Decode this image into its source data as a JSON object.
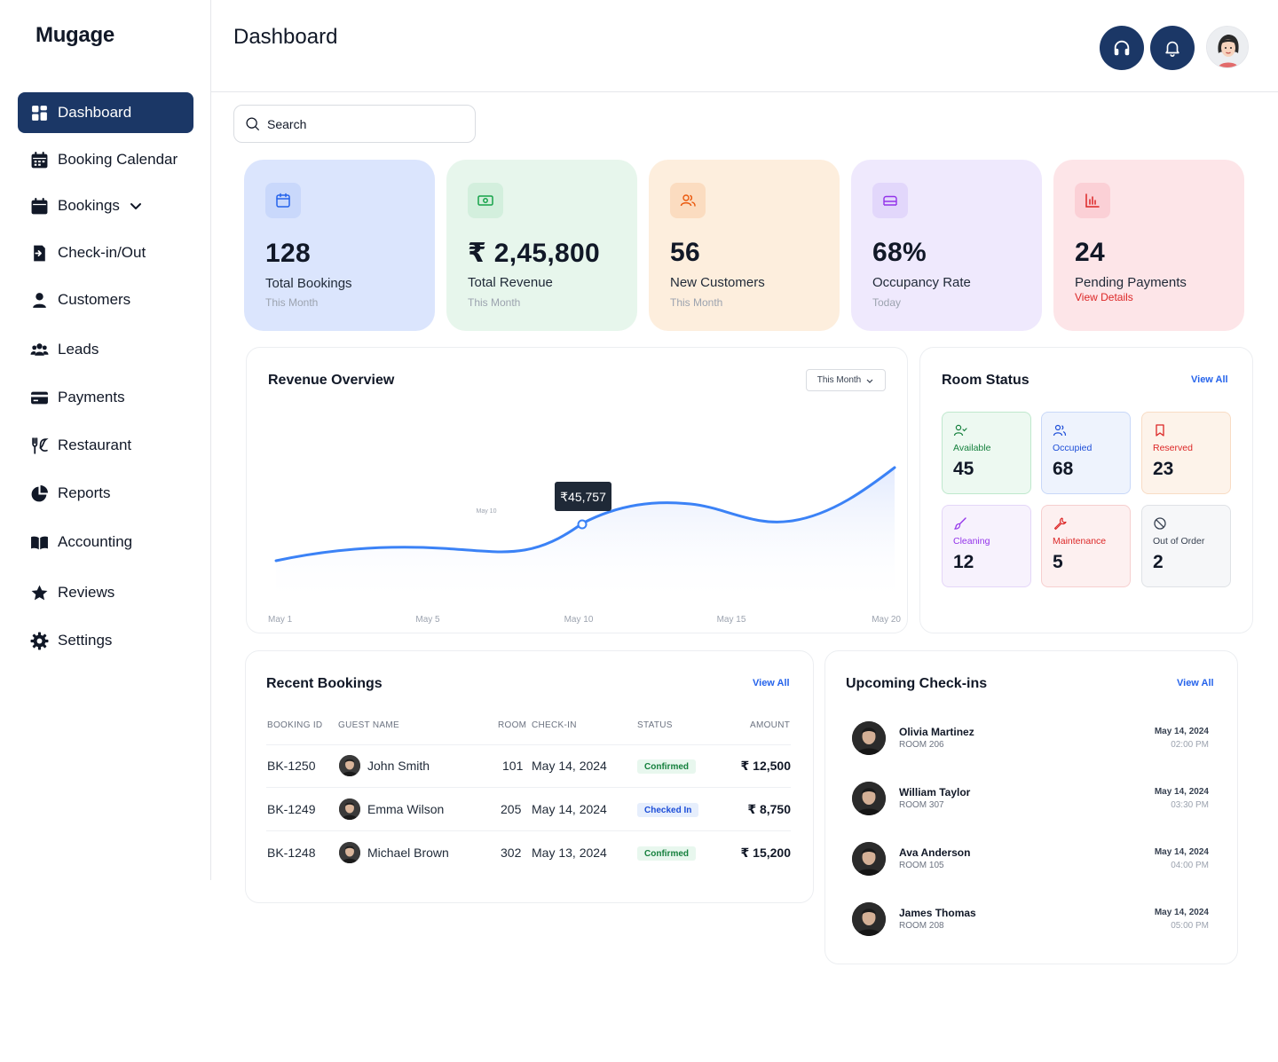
{
  "brand": "Mugage",
  "page_title": "Dashboard",
  "search": {
    "placeholder": "Search"
  },
  "nav": [
    {
      "label": "Dashboard",
      "icon": "grid-icon"
    },
    {
      "label": "Booking Calendar",
      "icon": "calendar-icon"
    },
    {
      "label": "Bookings",
      "icon": "calendar-icon"
    },
    {
      "label": "Check-in/Out",
      "icon": "door-icon"
    },
    {
      "label": "Customers",
      "icon": "user-icon"
    },
    {
      "label": "Leads",
      "icon": "users-icon"
    },
    {
      "label": "Payments",
      "icon": "card-icon"
    },
    {
      "label": "Restaurant",
      "icon": "utensils-icon"
    },
    {
      "label": "Reports",
      "icon": "pie-icon"
    },
    {
      "label": "Accounting",
      "icon": "book-icon"
    },
    {
      "label": "Reviews",
      "icon": "star-icon"
    },
    {
      "label": "Settings",
      "icon": "gear-icon"
    }
  ],
  "stats": [
    {
      "value": "128",
      "label": "Total Bookings",
      "sub": "This Month",
      "bg": "#dbe5fd",
      "icon": "calendar-icon"
    },
    {
      "value": "₹ 2,45,800",
      "label": "Total Revenue",
      "sub": "This Month",
      "bg": "#e7f6ec",
      "icon": "cash-icon"
    },
    {
      "value": "56",
      "label": "New Customers",
      "sub": "This Month",
      "bg": "#fdeedd",
      "icon": "users-icon"
    },
    {
      "value": "68%",
      "label": "Occupancy Rate",
      "sub": "Today",
      "bg": "#efe9fd",
      "icon": "bed-icon"
    },
    {
      "value": "24",
      "label": "Pending Payments",
      "sub": "View Details",
      "bg": "#fde5e8",
      "icon": "bar-chart-icon"
    }
  ],
  "revenue": {
    "title": "Revenue Overview",
    "period": "This Month",
    "tooltip": "₹45,757",
    "tooltip_date": "May 10"
  },
  "chart_data": {
    "type": "area",
    "x_ticks": [
      "May 1",
      "May 5",
      "May 10",
      "May 15",
      "May 20"
    ],
    "highlight": {
      "x": "May 10",
      "value": 45757
    }
  },
  "room_status": {
    "title": "Room Status",
    "view_all": "View All",
    "tiles": [
      {
        "label": "Available",
        "value": "45",
        "color": "#15803d",
        "bg": "#edf9f1",
        "border": "#bfe8cd",
        "icon": "user-check-icon"
      },
      {
        "label": "Occupied",
        "value": "68",
        "color": "#1d4ed8",
        "bg": "#eef3fd",
        "border": "#c8d8f8",
        "icon": "users-icon"
      },
      {
        "label": "Reserved",
        "value": "23",
        "color": "#dc2626",
        "bg": "#fdf3ea",
        "border": "#f8dcc4",
        "icon": "bookmark-icon"
      },
      {
        "label": "Cleaning",
        "value": "12",
        "color": "#9333ea",
        "bg": "#f7f2fd",
        "border": "#e4d6f8",
        "icon": "brush-icon"
      },
      {
        "label": "Maintenance",
        "value": "5",
        "color": "#dc2626",
        "bg": "#fdf0f0",
        "border": "#f6cfcf",
        "icon": "wrench-icon"
      },
      {
        "label": "Out of Order",
        "value": "2",
        "color": "#374151",
        "bg": "#f6f7f9",
        "border": "#dfe2e6",
        "icon": "ban-icon"
      }
    ]
  },
  "recent": {
    "title": "Recent Bookings",
    "view_all": "View All",
    "headers": [
      "BOOKING ID",
      "GUEST NAME",
      "ROOM",
      "CHECK-IN",
      "STATUS",
      "AMOUNT"
    ],
    "rows": [
      {
        "id": "BK-1250",
        "guest": "John Smith",
        "room": "101",
        "checkin": "May 14, 2024",
        "status": "Confirmed",
        "amount": "₹ 12,500"
      },
      {
        "id": "BK-1249",
        "guest": "Emma Wilson",
        "room": "205",
        "checkin": "May 14, 2024",
        "status": "Checked In",
        "amount": "₹ 8,750"
      },
      {
        "id": "BK-1248",
        "guest": "Michael Brown",
        "room": "302",
        "checkin": "May 13, 2024",
        "status": "Confirmed",
        "amount": "₹ 15,200"
      }
    ]
  },
  "upcoming": {
    "title": "Upcoming Check-ins",
    "view_all": "View All",
    "items": [
      {
        "name": "Olivia Martinez",
        "room": "ROOM 206",
        "date": "May 14, 2024",
        "time": "02:00 PM"
      },
      {
        "name": "William Taylor",
        "room": "ROOM 307",
        "date": "May 14, 2024",
        "time": "03:30 PM"
      },
      {
        "name": "Ava Anderson",
        "room": "ROOM 105",
        "date": "May 14, 2024",
        "time": "04:00 PM"
      },
      {
        "name": "James Thomas",
        "room": "ROOM 208",
        "date": "May 14, 2024",
        "time": "05:00 PM"
      }
    ]
  }
}
